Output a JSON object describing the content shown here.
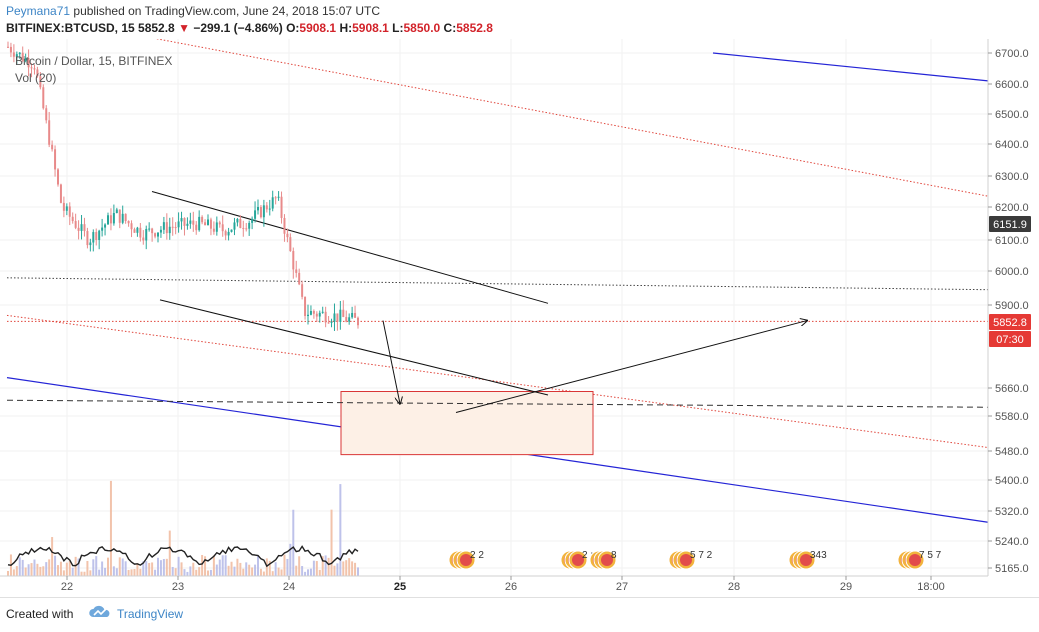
{
  "header": {
    "author": "Peymana71",
    "published_text": "published on TradingView.com, June 24, 2018 15:07 UTC",
    "symbol": "BITFINEX:BTCUSD, 15",
    "last": "5852.8",
    "change": "−299.1 (−4.86%)",
    "o_label": "O:",
    "o_val": "5908.1",
    "h_label": "H:",
    "h_val": "5908.1",
    "l_label": "L:",
    "l_val": "5850.0",
    "c_label": "C:",
    "c_val": "5852.8"
  },
  "legend": {
    "series": "Bitcoin / Dollar, 15, BITFINEX",
    "volume": "Vol (20)"
  },
  "footer": {
    "created_with": "Created with",
    "brand": "TradingView"
  },
  "colors": {
    "up": "#26a69a",
    "down": "#ef5350",
    "candle_dark": "#e88a8a",
    "blue_channel": "#2424d6",
    "red_channel": "#e0453b",
    "box_fill": "#fdf0e6",
    "box_stroke": "#d93636",
    "price_tag": "#e53935",
    "tag_dark": "#3a3a3a",
    "accent": "#3d85c6"
  },
  "chart_data": {
    "type": "line",
    "title": "Bitcoin / Dollar, 15, BITFINEX",
    "y_axis": {
      "ticks": [
        "6700.0",
        "6600.0",
        "6500.0",
        "6400.0",
        "6300.0",
        "6200.0",
        "6100.0",
        "6000.0",
        "5900.0",
        "5660.0",
        "5580.0",
        "5480.0",
        "5400.0",
        "5320.0",
        "5240.0",
        "5165.0"
      ]
    },
    "x_axis": {
      "ticks": [
        "22",
        "23",
        "24",
        "25",
        "26",
        "27",
        "28",
        "29",
        "18:00"
      ]
    },
    "price_labels": [
      {
        "text": "6151.9",
        "style": "dark"
      },
      {
        "text": "5852.8",
        "style": "red"
      },
      {
        "text": "07:30",
        "style": "red"
      }
    ],
    "series": [
      {
        "name": "BTCUSD",
        "x": [
          "22",
          "",
          "",
          "",
          "",
          "",
          "23",
          "",
          "",
          "",
          "",
          "",
          "24",
          ""
        ],
        "values": [
          6720,
          6660,
          6200,
          6100,
          6180,
          6120,
          6140,
          6150,
          6130,
          6160,
          6230,
          5880,
          5870,
          5853
        ]
      }
    ],
    "drawings": {
      "blue_channel": [
        [
          6610,
          6700
        ],
        [
          5690,
          5290
        ]
      ],
      "red_dotted_channel": [
        [
          6235,
          6750
        ],
        [
          5870,
          5490
        ]
      ],
      "descending_channel_upper": [
        6250,
        5905
      ],
      "descending_channel_lower": [
        5915,
        5640
      ],
      "target_zone": [
        5650,
        5470
      ],
      "dashed_level": 5620,
      "dotted_level": 5980,
      "projection": [
        5855,
        5615,
        5590,
        5855
      ]
    },
    "event_markers": [
      {
        "label": "2 2"
      },
      {
        "label": "2 :"
      },
      {
        "label": "8"
      },
      {
        "label": "5 7 2"
      },
      {
        "label": "343"
      },
      {
        "label": "7 5 7"
      }
    ]
  }
}
